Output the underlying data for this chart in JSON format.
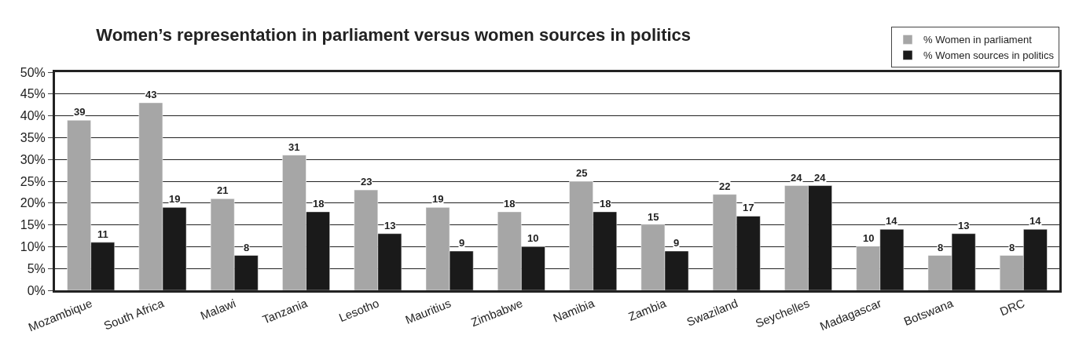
{
  "chart_data": {
    "type": "bar",
    "title": "Women’s representation in parliament versus women sources in politics",
    "categories": [
      "Mozambique",
      "South Africa",
      "Malawi",
      "Tanzania",
      "Lesotho",
      "Mauritius",
      "Zimbabwe",
      "Namibia",
      "Zambia",
      "Swaziland",
      "Seychelles",
      "Madagascar",
      "Botswana",
      "DRC"
    ],
    "series": [
      {
        "name": "% Women in parliament",
        "color": "#a6a6a6",
        "values": [
          39,
          43,
          21,
          31,
          23,
          19,
          18,
          25,
          15,
          22,
          24,
          10,
          8,
          8
        ]
      },
      {
        "name": "% Women sources in politics",
        "color": "#1a1a1a",
        "values": [
          11,
          19,
          8,
          18,
          13,
          9,
          10,
          18,
          9,
          17,
          24,
          14,
          13,
          14
        ]
      }
    ],
    "ylim": [
      0,
      50
    ],
    "yticks": [
      {
        "value": 0,
        "label": "0%"
      },
      {
        "value": 5,
        "label": "5%"
      },
      {
        "value": 10,
        "label": "10%"
      },
      {
        "value": 15,
        "label": "15%"
      },
      {
        "value": 20,
        "label": "20%"
      },
      {
        "value": 25,
        "label": "25%"
      },
      {
        "value": 30,
        "label": "30%"
      },
      {
        "value": 35,
        "label": "35%"
      },
      {
        "value": 40,
        "label": "40%"
      },
      {
        "value": 45,
        "label": "45%"
      },
      {
        "value": 50,
        "label": "50%"
      }
    ],
    "grid": "y",
    "legend": "top right",
    "data_labels": true
  }
}
